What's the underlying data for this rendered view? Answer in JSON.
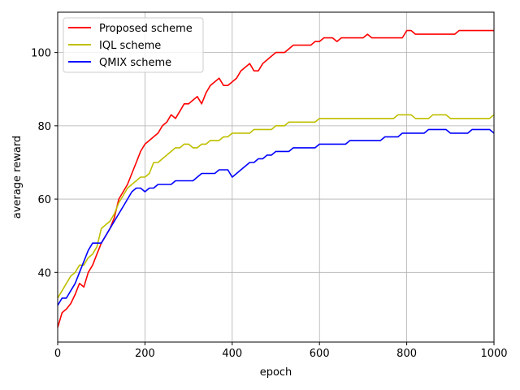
{
  "chart_data": {
    "type": "line",
    "title": "",
    "xlabel": "epoch",
    "ylabel": "average reward",
    "xlim": [
      0,
      1000
    ],
    "ylim": [
      21,
      111
    ],
    "grid": true,
    "legend_position": "top-left",
    "x_ticks": [
      0,
      200,
      400,
      600,
      800,
      1000
    ],
    "y_ticks": [
      40,
      60,
      80,
      100
    ],
    "x": [
      0,
      10,
      20,
      30,
      40,
      50,
      60,
      70,
      80,
      90,
      100,
      110,
      120,
      130,
      140,
      150,
      160,
      170,
      180,
      190,
      200,
      210,
      220,
      230,
      240,
      250,
      260,
      270,
      280,
      290,
      300,
      310,
      320,
      330,
      340,
      350,
      360,
      370,
      380,
      390,
      400,
      410,
      420,
      430,
      440,
      450,
      460,
      470,
      480,
      490,
      500,
      510,
      520,
      530,
      540,
      550,
      560,
      570,
      580,
      590,
      600,
      610,
      620,
      630,
      640,
      650,
      660,
      670,
      680,
      690,
      700,
      710,
      720,
      730,
      740,
      750,
      760,
      770,
      780,
      790,
      800,
      810,
      820,
      830,
      840,
      850,
      860,
      870,
      880,
      890,
      900,
      910,
      920,
      930,
      940,
      950,
      960,
      970,
      980,
      990,
      1000
    ],
    "series": [
      {
        "name": "Proposed scheme",
        "color": "#ff0000",
        "values": [
          25,
          29,
          30,
          31.5,
          34,
          37,
          36,
          40,
          42,
          45,
          48,
          50,
          52,
          55,
          60,
          62,
          64,
          67,
          70,
          73,
          75,
          76,
          77,
          78,
          80,
          81,
          83,
          82,
          84,
          86,
          86,
          87,
          88,
          86,
          89,
          91,
          92,
          93,
          91,
          91,
          92,
          93,
          95,
          96,
          97,
          95,
          95,
          97,
          98,
          99,
          100,
          100,
          100,
          101,
          102,
          102,
          102,
          102,
          102,
          103,
          103,
          104,
          104,
          104,
          103,
          104,
          104,
          104,
          104,
          104,
          104,
          105,
          104,
          104,
          104,
          104,
          104,
          104,
          104,
          104,
          106,
          106,
          105,
          105,
          105,
          105,
          105,
          105,
          105,
          105,
          105,
          105,
          106,
          106,
          106,
          106,
          106,
          106,
          106,
          106,
          106
        ]
      },
      {
        "name": "IQL scheme",
        "color": "#bfbf00",
        "values": [
          33,
          35,
          37,
          39,
          40,
          42,
          42,
          44,
          45,
          47,
          52,
          53,
          54,
          56,
          59,
          61,
          63,
          64,
          65,
          66,
          66,
          67,
          70,
          70,
          71,
          72,
          73,
          74,
          74,
          75,
          75,
          74,
          74,
          75,
          75,
          76,
          76,
          76,
          77,
          77,
          78,
          78,
          78,
          78,
          78,
          79,
          79,
          79,
          79,
          79,
          80,
          80,
          80,
          81,
          81,
          81,
          81,
          81,
          81,
          81,
          82,
          82,
          82,
          82,
          82,
          82,
          82,
          82,
          82,
          82,
          82,
          82,
          82,
          82,
          82,
          82,
          82,
          82,
          83,
          83,
          83,
          83,
          82,
          82,
          82,
          82,
          83,
          83,
          83,
          83,
          82,
          82,
          82,
          82,
          82,
          82,
          82,
          82,
          82,
          82,
          83
        ]
      },
      {
        "name": "QMIX scheme",
        "color": "#0000ff",
        "values": [
          31,
          33,
          33,
          35,
          37,
          40,
          43,
          46,
          48,
          48,
          48,
          50,
          52,
          54,
          56,
          58,
          60,
          62,
          63,
          63,
          62,
          63,
          63,
          64,
          64,
          64,
          64,
          65,
          65,
          65,
          65,
          65,
          66,
          67,
          67,
          67,
          67,
          68,
          68,
          68,
          66,
          67,
          68,
          69,
          70,
          70,
          71,
          71,
          72,
          72,
          73,
          73,
          73,
          73,
          74,
          74,
          74,
          74,
          74,
          74,
          75,
          75,
          75,
          75,
          75,
          75,
          75,
          76,
          76,
          76,
          76,
          76,
          76,
          76,
          76,
          77,
          77,
          77,
          77,
          78,
          78,
          78,
          78,
          78,
          78,
          79,
          79,
          79,
          79,
          79,
          78,
          78,
          78,
          78,
          78,
          79,
          79,
          79,
          79,
          79,
          78
        ]
      }
    ]
  }
}
